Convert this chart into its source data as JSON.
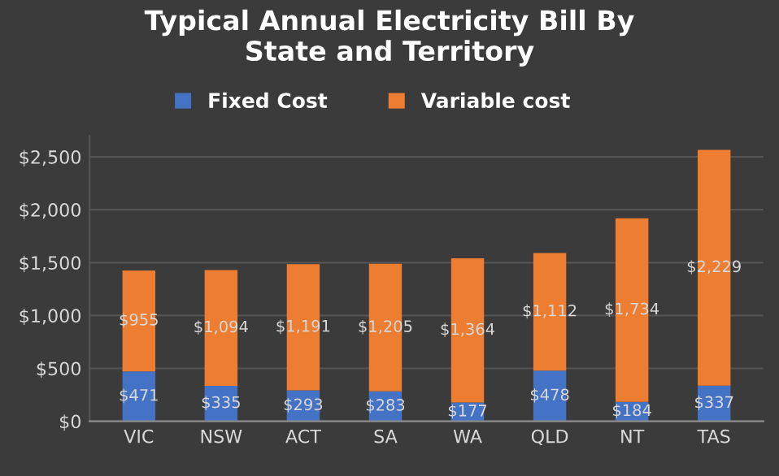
{
  "chart_data": {
    "type": "bar",
    "title": "Typical Annual Electricity Bill By\nState and Territory",
    "stacked": true,
    "categories": [
      "VIC",
      "NSW",
      "ACT",
      "SA",
      "WA",
      "QLD",
      "NT",
      "TAS"
    ],
    "series": [
      {
        "name": "Fixed Cost",
        "color": "#4472c4",
        "values": [
          471,
          335,
          293,
          283,
          177,
          478,
          184,
          337
        ],
        "value_labels": [
          "$471",
          "$335",
          "$293",
          "$283",
          "$177",
          "$478",
          "$184",
          "$337"
        ]
      },
      {
        "name": "Variable cost",
        "color": "#ed7d31",
        "values": [
          955,
          1094,
          1191,
          1205,
          1364,
          1112,
          1734,
          2229
        ],
        "value_labels": [
          "$955",
          "$1,094",
          "$1,191",
          "$1,205",
          "$1,364",
          "$1,112",
          "$1,734",
          "$2,229"
        ]
      }
    ],
    "ylim": [
      0,
      2700
    ],
    "yticks": [
      {
        "value": 0,
        "label": "$0"
      },
      {
        "value": 500,
        "label": "$500"
      },
      {
        "value": 1000,
        "label": "$1,000"
      },
      {
        "value": 1500,
        "label": "$1,500"
      },
      {
        "value": 2000,
        "label": "$2,000"
      },
      {
        "value": 2500,
        "label": "$2,500"
      }
    ],
    "grid": "y",
    "legend": "top"
  }
}
